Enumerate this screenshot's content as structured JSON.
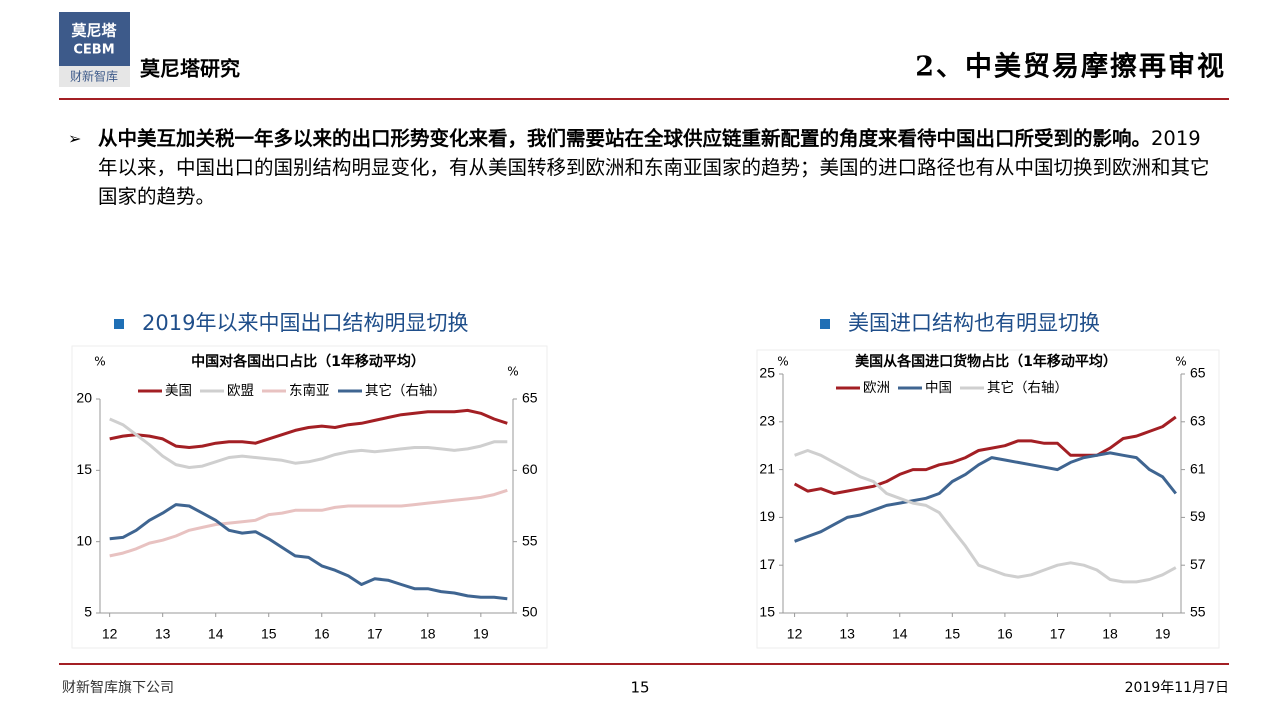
{
  "header": {
    "logo_top": "莫尼塔",
    "logo_mid": "CEBM",
    "logo_bottom": "财新智库",
    "brand": "莫尼塔研究",
    "title": "2、中美贸易摩擦再审视"
  },
  "body": {
    "bold": "从中美互加关税一年多以来的出口形势变化来看，我们需要站在全球供应链重新配置的角度来看待中国出口所受到的影响。",
    "text": "2019年以来，中国出口的国别结构明显变化，有从美国转移到欧洲和东南亚国家的趋势；美国的进口路径也有从中国切换到欧洲和其它国家的趋势。"
  },
  "chart_data": [
    {
      "type": "line",
      "heading": "2019年以来中国出口结构明显切换",
      "title": "中国对各国出口占比（1年移动平均）",
      "ylabel": "%",
      "y2label": "%",
      "x": [
        12,
        12.25,
        12.5,
        12.75,
        13,
        13.25,
        13.5,
        13.75,
        14,
        14.25,
        14.5,
        14.75,
        15,
        15.25,
        15.5,
        15.75,
        16,
        16.25,
        16.5,
        16.75,
        17,
        17.25,
        17.5,
        17.75,
        18,
        18.25,
        18.5,
        18.75,
        19,
        19.25,
        19.5
      ],
      "xlim": [
        11.95,
        19.55
      ],
      "xticks": [
        12,
        13,
        14,
        15,
        16,
        17,
        18,
        19
      ],
      "ylim": [
        5,
        20
      ],
      "yticks": [
        5,
        10,
        15,
        20
      ],
      "y2lim": [
        50,
        65
      ],
      "y2ticks": [
        50,
        55,
        60,
        65
      ],
      "series": [
        {
          "name": "美国",
          "color": "#a31f24",
          "values": [
            17.2,
            17.4,
            17.5,
            17.4,
            17.2,
            16.7,
            16.6,
            16.7,
            16.9,
            17.0,
            17.0,
            16.9,
            17.2,
            17.5,
            17.8,
            18.0,
            18.1,
            18.0,
            18.2,
            18.3,
            18.5,
            18.7,
            18.9,
            19.0,
            19.1,
            19.1,
            19.1,
            19.2,
            19.0,
            18.6,
            18.3
          ]
        },
        {
          "name": "欧盟",
          "color": "#cfcfcf",
          "values": [
            18.6,
            18.2,
            17.5,
            16.8,
            16.0,
            15.4,
            15.2,
            15.3,
            15.6,
            15.9,
            16.0,
            15.9,
            15.8,
            15.7,
            15.5,
            15.6,
            15.8,
            16.1,
            16.3,
            16.4,
            16.3,
            16.4,
            16.5,
            16.6,
            16.6,
            16.5,
            16.4,
            16.5,
            16.7,
            17.0,
            17.0
          ]
        },
        {
          "name": "东南亚",
          "color": "#e8c2c1",
          "values": [
            9.0,
            9.2,
            9.5,
            9.9,
            10.1,
            10.4,
            10.8,
            11.0,
            11.2,
            11.3,
            11.4,
            11.5,
            11.9,
            12.0,
            12.2,
            12.2,
            12.2,
            12.4,
            12.5,
            12.5,
            12.5,
            12.5,
            12.5,
            12.6,
            12.7,
            12.8,
            12.9,
            13.0,
            13.1,
            13.3,
            13.6
          ]
        },
        {
          "name": "其它（右轴）",
          "color": "#3f6591",
          "axis": "y2",
          "values": [
            55.2,
            55.3,
            55.8,
            56.5,
            57.0,
            57.6,
            57.5,
            57.0,
            56.5,
            55.8,
            55.6,
            55.7,
            55.2,
            54.6,
            54.0,
            53.9,
            53.3,
            53.0,
            52.6,
            52.0,
            52.4,
            52.3,
            52.0,
            51.7,
            51.7,
            51.5,
            51.4,
            51.2,
            51.1,
            51.1,
            51.0
          ]
        }
      ]
    },
    {
      "type": "line",
      "heading": "美国进口结构也有明显切换",
      "title": "美国从各国进口货物占比（1年移动平均）",
      "ylabel": "%",
      "y2label": "%",
      "x": [
        12,
        12.25,
        12.5,
        12.75,
        13,
        13.25,
        13.5,
        13.75,
        14,
        14.25,
        14.5,
        14.75,
        15,
        15.25,
        15.5,
        15.75,
        16,
        16.25,
        16.5,
        16.75,
        17,
        17.25,
        17.5,
        17.75,
        18,
        18.25,
        18.5,
        18.75,
        19,
        19.25
      ],
      "xlim": [
        11.97,
        19.33
      ],
      "xticks": [
        12,
        13,
        14,
        15,
        16,
        17,
        18,
        19
      ],
      "ylim": [
        15,
        25
      ],
      "yticks": [
        15,
        17,
        19,
        21,
        23,
        25
      ],
      "y2lim": [
        55,
        65
      ],
      "y2ticks": [
        55,
        57,
        59,
        61,
        63,
        65
      ],
      "series": [
        {
          "name": "欧洲",
          "color": "#a31f24",
          "values": [
            20.4,
            20.1,
            20.2,
            20.0,
            20.1,
            20.2,
            20.3,
            20.5,
            20.8,
            21.0,
            21.0,
            21.2,
            21.3,
            21.5,
            21.8,
            21.9,
            22.0,
            22.2,
            22.2,
            22.1,
            22.1,
            21.6,
            21.6,
            21.6,
            21.9,
            22.3,
            22.4,
            22.6,
            22.8,
            23.2
          ]
        },
        {
          "name": "中国",
          "color": "#3f6591",
          "values": [
            18.0,
            18.2,
            18.4,
            18.7,
            19.0,
            19.1,
            19.3,
            19.5,
            19.6,
            19.7,
            19.8,
            20.0,
            20.5,
            20.8,
            21.2,
            21.5,
            21.4,
            21.3,
            21.2,
            21.1,
            21.0,
            21.3,
            21.5,
            21.6,
            21.7,
            21.6,
            21.5,
            21.0,
            20.7,
            20.0
          ]
        },
        {
          "name": "其它（右轴）",
          "color": "#cfcfcf",
          "axis": "y2",
          "values": [
            61.6,
            61.8,
            61.6,
            61.3,
            61.0,
            60.7,
            60.5,
            60.0,
            59.8,
            59.6,
            59.5,
            59.2,
            58.5,
            57.8,
            57.0,
            56.8,
            56.6,
            56.5,
            56.6,
            56.8,
            57.0,
            57.1,
            57.0,
            56.8,
            56.4,
            56.3,
            56.3,
            56.4,
            56.6,
            56.9
          ]
        }
      ]
    }
  ],
  "footer": {
    "company": "财新智库旗下公司",
    "page": "15",
    "date": "2019年11月7日"
  }
}
